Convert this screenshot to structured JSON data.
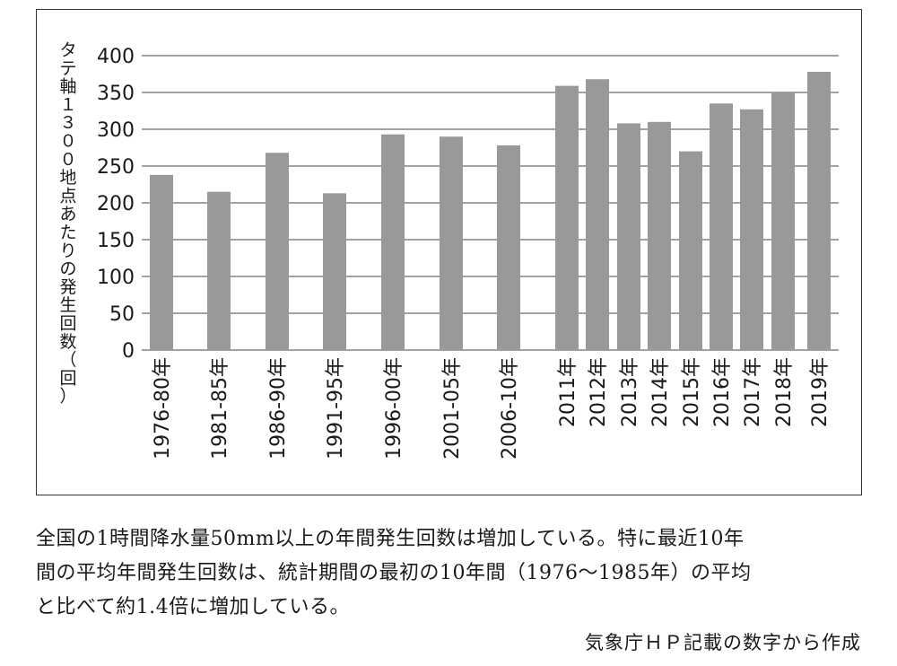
{
  "chart_data": {
    "type": "bar",
    "ylabel": "タテ軸１３００地点あたりの発生回数（回）",
    "ylim": [
      0,
      400
    ],
    "yticks": [
      "400",
      "350",
      "300",
      "250",
      "200",
      "150",
      "100",
      "50",
      "0"
    ],
    "grid": true,
    "bar_color": "#999999",
    "categories": [
      "1976-80年",
      "1981-85年",
      "1986-90年",
      "1991-95年",
      "1996-00年",
      "2001-05年",
      "2006-10年",
      "2011年",
      "2012年",
      "2013年",
      "2014年",
      "2015年",
      "2016年",
      "2017年",
      "2018年",
      "2019年"
    ],
    "values": [
      238,
      215,
      268,
      213,
      293,
      290,
      278,
      359,
      368,
      308,
      310,
      270,
      335,
      327,
      350,
      378
    ]
  },
  "caption": {
    "line1": "全国の1時間降水量50mm以上の年間発生回数は増加している。特に最近10年",
    "line2": "間の平均年間発生回数は、統計期間の最初の10年間（1976〜1985年）の平均",
    "line3": "と比べて約1.4倍に増加している。"
  },
  "source": "気象庁ＨＰ記載の数字から作成"
}
